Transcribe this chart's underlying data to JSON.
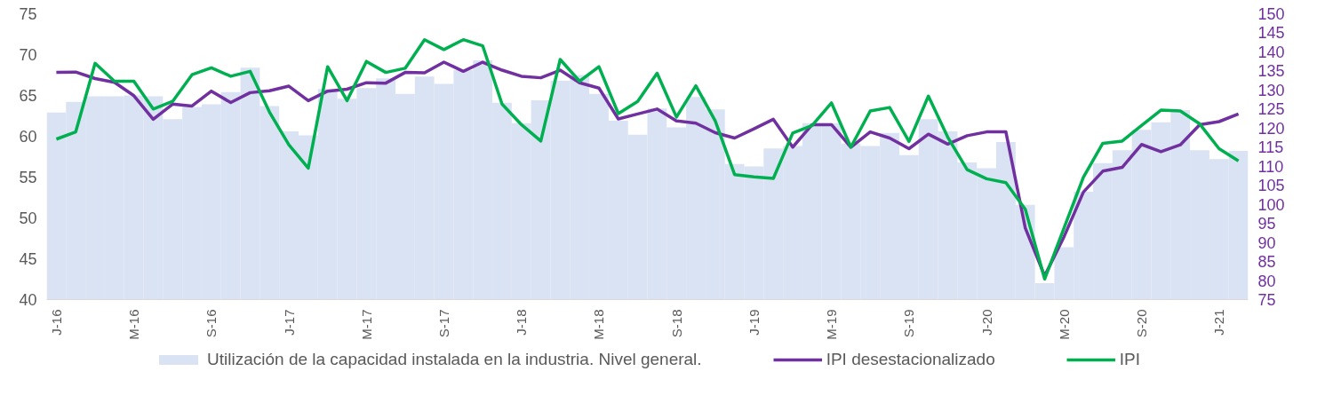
{
  "chart_data": {
    "type": "bar",
    "categories": [
      "J-16",
      null,
      null,
      null,
      "M-16",
      null,
      null,
      null,
      "S-16",
      null,
      null,
      null,
      "J-17",
      null,
      null,
      null,
      "M-17",
      null,
      null,
      null,
      "S-17",
      null,
      null,
      null,
      "J-18",
      null,
      null,
      null,
      "M-18",
      null,
      null,
      null,
      "S-18",
      null,
      null,
      null,
      "J-19",
      null,
      null,
      null,
      "M-19",
      null,
      null,
      null,
      "S-19",
      null,
      null,
      null,
      "J-20",
      null,
      null,
      null,
      "M-20",
      null,
      null,
      null,
      "S-20",
      null,
      null,
      null,
      "J-21",
      null
    ],
    "series": [
      {
        "name": "Utilización de la capacidad instalada en la industria. Nivel general.",
        "color": "#dae3f3",
        "values": [
          62.9,
          64.2,
          64.9,
          64.9,
          65.0,
          64.9,
          62.1,
          63.6,
          63.9,
          65.4,
          68.4,
          63.7,
          60.6,
          60.1,
          65.8,
          64.6,
          65.9,
          67.1,
          65.2,
          67.3,
          66.4,
          68.1,
          69.3,
          64.1,
          61.6,
          64.4,
          66.8,
          67.5,
          65.2,
          61.9,
          60.2,
          63.4,
          61.1,
          64.8,
          63.3,
          56.6,
          56.3,
          58.5,
          58.8,
          61.6,
          61.6,
          59.1,
          58.8,
          60.4,
          57.7,
          62.1,
          60.6,
          56.8,
          56.1,
          59.3,
          51.6,
          42.0,
          46.4,
          53.2,
          56.7,
          58.3,
          60.8,
          61.7,
          63.2,
          58.3,
          57.2,
          58.2
        ]
      },
      {
        "name": "IPI desestacionalizado",
        "type": "line",
        "axis": "y2",
        "color": "#7030a0",
        "values": [
          134.6,
          134.7,
          133.0,
          132.0,
          128.5,
          122.3,
          126.3,
          125.8,
          129.7,
          126.7,
          129.3,
          129.8,
          131.0,
          127.2,
          129.7,
          130.2,
          131.9,
          131.8,
          134.6,
          134.5,
          137.3,
          134.9,
          137.3,
          135.2,
          133.6,
          133.2,
          135.2,
          131.9,
          130.5,
          122.4,
          123.7,
          125.0,
          121.9,
          121.3,
          118.8,
          117.4,
          119.8,
          122.3,
          115.0,
          120.9,
          120.9,
          115.0,
          119.0,
          117.4,
          114.6,
          118.4,
          115.8,
          118.0,
          119.0,
          119.0,
          93.8,
          81.2,
          91.5,
          103.2,
          108.7,
          109.7,
          115.7,
          113.8,
          115.6,
          120.9,
          121.7,
          123.7
        ]
      },
      {
        "name": "IPI",
        "type": "line",
        "axis": "y2",
        "color": "#00b050",
        "values": [
          117.1,
          119.0,
          137.0,
          132.3,
          132.3,
          125.0,
          127.0,
          134.0,
          135.8,
          133.6,
          134.9,
          124.2,
          115.6,
          109.5,
          136.1,
          127.2,
          137.5,
          134.6,
          135.7,
          143.2,
          140.6,
          143.2,
          141.6,
          126.3,
          120.9,
          116.6,
          138.0,
          132.3,
          136.1,
          123.8,
          127.0,
          134.4,
          122.9,
          131.1,
          121.9,
          107.8,
          107.2,
          106.8,
          118.7,
          120.7,
          126.6,
          115.0,
          124.5,
          125.4,
          116.5,
          128.4,
          117.6,
          109.1,
          106.7,
          105.7,
          98.7,
          80.4,
          93.8,
          107.1,
          116.0,
          116.6,
          120.7,
          124.7,
          124.5,
          121.1,
          114.6,
          111.4
        ]
      }
    ],
    "ylim": [
      40,
      75
    ],
    "yticks": [
      40,
      45,
      50,
      55,
      60,
      65,
      70,
      75
    ],
    "y2lim": [
      75,
      150
    ],
    "y2ticks": [
      75,
      80,
      85,
      90,
      95,
      100,
      105,
      110,
      115,
      120,
      125,
      130,
      135,
      140,
      145,
      150
    ],
    "legend": "bottom",
    "grid": false
  }
}
